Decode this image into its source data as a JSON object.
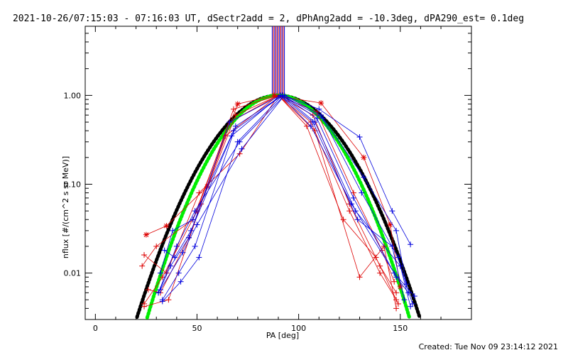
{
  "chart_data": {
    "type": "scatter",
    "title": "2021-10-26/07:15:03 - 07:16:03 UT, dSectr2add = 2, dPhAng2add = -10.3deg, dPA290_est=  0.1deg",
    "xlabel": "PA [deg]",
    "ylabel": "nflux [#/(cm^2 s sr MeV)]",
    "xlim": [
      -5,
      185
    ],
    "ylim": [
      0.003,
      6.0
    ],
    "yscale": "log",
    "x_ticks": [
      0,
      50,
      100,
      150
    ],
    "x_tick_labels": [
      "0",
      "50",
      "100",
      "150"
    ],
    "y_ticks": [
      1.0,
      0.1,
      0.01
    ],
    "y_tick_labels": [
      "1.00",
      "0.10",
      "0.01"
    ],
    "grid": false,
    "footer": "Created: Tue Nov 09 23:14:12 2021",
    "colors": {
      "red": "#dd0000",
      "blue": "#0000dd",
      "black": "#000000",
      "green": "#00ee00"
    },
    "series": [
      {
        "color": "red",
        "marker": "star",
        "x": [
          25,
          35,
          55,
          70,
          88,
          111,
          132,
          145,
          150
        ],
        "y": [
          0.027,
          0.034,
          0.094,
          0.8,
          1.0,
          0.82,
          0.2,
          0.035,
          0.007
        ]
      },
      {
        "color": "red",
        "marker": "plus",
        "x": [
          24,
          33,
          50,
          68,
          90,
          107,
          125,
          140,
          148
        ],
        "y": [
          0.0045,
          0.009,
          0.05,
          0.7,
          1.0,
          0.6,
          0.06,
          0.012,
          0.006
        ]
      },
      {
        "color": "red",
        "marker": "plus",
        "x": [
          23,
          30,
          48,
          66,
          90,
          106,
          125,
          140,
          148
        ],
        "y": [
          0.012,
          0.02,
          0.04,
          0.5,
          1.0,
          0.5,
          0.05,
          0.01,
          0.005
        ]
      },
      {
        "color": "red",
        "marker": "plus",
        "x": [
          24,
          35,
          51,
          71,
          90,
          108,
          130,
          142,
          148
        ],
        "y": [
          0.016,
          0.01,
          0.08,
          0.22,
          1.0,
          0.4,
          0.009,
          0.02,
          0.004
        ]
      },
      {
        "color": "red",
        "marker": "plus",
        "x": [
          26,
          32,
          46,
          64,
          90,
          104,
          122,
          138,
          149
        ],
        "y": [
          0.0065,
          0.006,
          0.025,
          0.35,
          1.0,
          0.45,
          0.04,
          0.015,
          0.0045
        ]
      },
      {
        "color": "red",
        "marker": "plus",
        "x": [
          24,
          36,
          52,
          69,
          90,
          109,
          127,
          141,
          147
        ],
        "y": [
          0.0042,
          0.005,
          0.06,
          0.6,
          1.0,
          0.65,
          0.08,
          0.018,
          0.008
        ]
      },
      {
        "color": "blue",
        "marker": "plus",
        "x": [
          31,
          40,
          49,
          71,
          93,
          110,
          130,
          146,
          155
        ],
        "y": [
          0.006,
          0.02,
          0.05,
          0.3,
          1.0,
          0.7,
          0.34,
          0.05,
          0.021
        ]
      },
      {
        "color": "blue",
        "marker": "plus",
        "x": [
          32,
          38,
          48,
          68,
          92,
          112,
          132,
          148,
          153
        ],
        "y": [
          0.01,
          0.03,
          0.04,
          0.4,
          1.0,
          0.55,
          0.12,
          0.03,
          0.0075
        ]
      },
      {
        "color": "blue",
        "marker": "plus",
        "x": [
          33,
          42,
          51,
          70,
          92,
          108,
          128,
          150,
          156
        ],
        "y": [
          0.0048,
          0.008,
          0.015,
          0.3,
          1.0,
          0.5,
          0.05,
          0.012,
          0.0045
        ]
      },
      {
        "color": "blue",
        "marker": "plus",
        "x": [
          31,
          37,
          46,
          66,
          91,
          106,
          126,
          147,
          157
        ],
        "y": [
          0.006,
          0.012,
          0.025,
          0.5,
          1.0,
          0.45,
          0.06,
          0.01,
          0.0055
        ]
      },
      {
        "color": "blue",
        "marker": "plus",
        "x": [
          32,
          43,
          50,
          72,
          93,
          111,
          131,
          149,
          155
        ],
        "y": [
          0.0065,
          0.017,
          0.035,
          0.25,
          1.0,
          0.6,
          0.08,
          0.015,
          0.0042
        ]
      },
      {
        "color": "blue",
        "marker": "plus",
        "x": [
          34,
          39,
          47,
          67,
          91,
          107,
          129,
          146,
          152
        ],
        "y": [
          0.018,
          0.015,
          0.03,
          0.35,
          1.0,
          0.5,
          0.04,
          0.02,
          0.005
        ]
      },
      {
        "color": "blue",
        "marker": "plus",
        "x": [
          33,
          41,
          49,
          69,
          92,
          109,
          127,
          148,
          154
        ],
        "y": [
          0.005,
          0.01,
          0.02,
          0.45,
          1.0,
          0.55,
          0.07,
          0.009,
          0.006
        ]
      }
    ],
    "model_curves": [
      {
        "color": "black",
        "center": 90,
        "sigma": 20.5
      },
      {
        "color": "green",
        "center": 90,
        "sigma": 19.0
      }
    ],
    "vertical_lines": {
      "x": [
        87,
        87.6,
        88.2,
        88.8,
        89.4,
        90,
        90.6,
        91.2,
        91.8,
        92.4,
        93
      ],
      "colors": [
        "blue",
        "red",
        "blue",
        "red",
        "blue",
        "red",
        "blue",
        "red",
        "blue",
        "red",
        "blue"
      ],
      "y_from": 1.0
    }
  }
}
